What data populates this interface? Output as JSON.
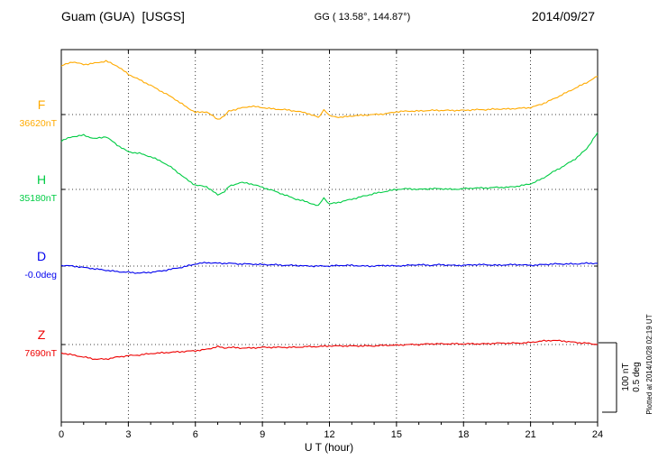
{
  "header": {
    "station": "Guam (GUA)  [USGS]",
    "coords": "GG ( 13.58°, 144.87°)",
    "date": "2014/09/27"
  },
  "axis": {
    "xlabel": "U T (hour)"
  },
  "scalebar": {
    "label_nt": "100 nT",
    "label_deg": "0.5 deg"
  },
  "footer_note": "Plotted at 2014/10/28 02:19 UT",
  "colors": {
    "F": "#ffaa00",
    "H": "#00cc44",
    "D": "#0000ee",
    "Z": "#ee0000",
    "grid": "#000000"
  },
  "chart_data": {
    "type": "line",
    "title": "Guam (GUA) [USGS] magnetogram 2014/09/27",
    "xlabel": "U T (hour)",
    "x_range": [
      0,
      24
    ],
    "x_ticks": [
      0,
      3,
      6,
      9,
      12,
      15,
      18,
      21,
      24
    ],
    "grid": "dotted",
    "scale": {
      "nT_per_div": 100,
      "deg_per_div": 0.5
    },
    "values_are": "offset from channel baseline (nT for F,H,Z; deg for D)",
    "series": [
      {
        "id": "F",
        "label": "F",
        "baseline_label": "36620nT",
        "baseline_value": 36620,
        "unit": "nT",
        "color": "#ffaa00",
        "points": [
          [
            0,
            70
          ],
          [
            0.5,
            76
          ],
          [
            1,
            72
          ],
          [
            1.5,
            74
          ],
          [
            2,
            77
          ],
          [
            2.5,
            70
          ],
          [
            3,
            58
          ],
          [
            3.5,
            50
          ],
          [
            4,
            42
          ],
          [
            4.5,
            33
          ],
          [
            5,
            24
          ],
          [
            5.5,
            13
          ],
          [
            6,
            3
          ],
          [
            6.5,
            4
          ],
          [
            7,
            -7
          ],
          [
            7.3,
            -2
          ],
          [
            7.5,
            5
          ],
          [
            8,
            9
          ],
          [
            8.5,
            12
          ],
          [
            9,
            10
          ],
          [
            9.5,
            8
          ],
          [
            10,
            7
          ],
          [
            10.5,
            5
          ],
          [
            11,
            2
          ],
          [
            11.5,
            -4
          ],
          [
            11.75,
            7
          ],
          [
            12,
            -2
          ],
          [
            12.5,
            -4
          ],
          [
            13,
            -2
          ],
          [
            13.5,
            -1
          ],
          [
            14,
            0
          ],
          [
            14.5,
            1
          ],
          [
            15,
            4
          ],
          [
            15.5,
            5
          ],
          [
            16,
            5
          ],
          [
            16.5,
            6
          ],
          [
            17,
            6
          ],
          [
            17.5,
            6
          ],
          [
            18,
            6
          ],
          [
            18.5,
            7
          ],
          [
            19,
            7
          ],
          [
            19.5,
            8
          ],
          [
            20,
            8
          ],
          [
            20.5,
            9
          ],
          [
            21,
            10
          ],
          [
            21.5,
            15
          ],
          [
            22,
            22
          ],
          [
            22.5,
            30
          ],
          [
            23,
            38
          ],
          [
            23.5,
            46
          ],
          [
            24,
            55
          ]
        ]
      },
      {
        "id": "H",
        "label": "H",
        "baseline_label": "35180nT",
        "baseline_value": 35180,
        "unit": "nT",
        "color": "#00cc44",
        "points": [
          [
            0,
            70
          ],
          [
            0.5,
            76
          ],
          [
            1,
            78
          ],
          [
            1.5,
            73
          ],
          [
            2,
            76
          ],
          [
            2.5,
            64
          ],
          [
            3,
            54
          ],
          [
            3.5,
            52
          ],
          [
            4,
            47
          ],
          [
            4.5,
            40
          ],
          [
            5,
            30
          ],
          [
            5.5,
            17
          ],
          [
            6,
            6
          ],
          [
            6.5,
            4
          ],
          [
            7,
            -8
          ],
          [
            7.3,
            -3
          ],
          [
            7.5,
            4
          ],
          [
            8,
            10
          ],
          [
            8.5,
            8
          ],
          [
            9,
            3
          ],
          [
            9.5,
            -2
          ],
          [
            10,
            -8
          ],
          [
            10.5,
            -14
          ],
          [
            11,
            -18
          ],
          [
            11.5,
            -24
          ],
          [
            11.75,
            -12
          ],
          [
            12,
            -21
          ],
          [
            12.5,
            -18
          ],
          [
            13,
            -14
          ],
          [
            13.5,
            -10
          ],
          [
            14,
            -6
          ],
          [
            14.5,
            -3
          ],
          [
            15,
            0
          ],
          [
            15.5,
            1
          ],
          [
            16,
            0
          ],
          [
            16.5,
            1
          ],
          [
            17,
            1
          ],
          [
            17.5,
            0
          ],
          [
            18,
            1
          ],
          [
            18.5,
            2
          ],
          [
            19,
            2
          ],
          [
            19.5,
            3
          ],
          [
            20,
            3
          ],
          [
            20.5,
            5
          ],
          [
            21,
            8
          ],
          [
            21.5,
            15
          ],
          [
            22,
            25
          ],
          [
            22.5,
            34
          ],
          [
            23,
            44
          ],
          [
            23.5,
            58
          ],
          [
            24,
            82
          ]
        ]
      },
      {
        "id": "D",
        "label": "D",
        "baseline_label": "-0.0deg",
        "baseline_value": -0.0,
        "unit": "deg",
        "color": "#0000ee",
        "points": [
          [
            0,
            0.005
          ],
          [
            0.5,
            0
          ],
          [
            1,
            -0.01
          ],
          [
            1.5,
            -0.02
          ],
          [
            2,
            -0.03
          ],
          [
            2.5,
            -0.04
          ],
          [
            3,
            -0.045
          ],
          [
            3.5,
            -0.05
          ],
          [
            4,
            -0.045
          ],
          [
            4.5,
            -0.035
          ],
          [
            5,
            -0.02
          ],
          [
            5.5,
            -0.005
          ],
          [
            6,
            0.015
          ],
          [
            6.5,
            0.025
          ],
          [
            7,
            0.02
          ],
          [
            7.5,
            0.02
          ],
          [
            8,
            0.015
          ],
          [
            8.5,
            0.015
          ],
          [
            9,
            0.01
          ],
          [
            9.5,
            0.01
          ],
          [
            10,
            0.005
          ],
          [
            10.5,
            0.005
          ],
          [
            11,
            0
          ],
          [
            11.5,
            0
          ],
          [
            12,
            0
          ],
          [
            12.5,
            0.005
          ],
          [
            13,
            0.005
          ],
          [
            13.5,
            0
          ],
          [
            14,
            0
          ],
          [
            14.5,
            0.005
          ],
          [
            15,
            0
          ],
          [
            15.5,
            0.005
          ],
          [
            16,
            0.01
          ],
          [
            16.5,
            0.005
          ],
          [
            17,
            0.01
          ],
          [
            17.5,
            0.005
          ],
          [
            18,
            0.005
          ],
          [
            18.5,
            0.01
          ],
          [
            19,
            0.01
          ],
          [
            19.5,
            0.005
          ],
          [
            20,
            0.01
          ],
          [
            20.5,
            0.01
          ],
          [
            21,
            0.005
          ],
          [
            21.5,
            0.01
          ],
          [
            22,
            0.015
          ],
          [
            22.5,
            0.015
          ],
          [
            23,
            0.015
          ],
          [
            23.5,
            0.02
          ],
          [
            24,
            0.02
          ]
        ]
      },
      {
        "id": "Z",
        "label": "Z",
        "baseline_label": "7690nT",
        "baseline_value": 7690,
        "unit": "nT",
        "color": "#ee0000",
        "points": [
          [
            0,
            -12
          ],
          [
            0.5,
            -15
          ],
          [
            1,
            -18
          ],
          [
            1.5,
            -21
          ],
          [
            2,
            -21
          ],
          [
            2.5,
            -18
          ],
          [
            3,
            -16
          ],
          [
            3.5,
            -15
          ],
          [
            4,
            -13
          ],
          [
            4.5,
            -12
          ],
          [
            5,
            -11
          ],
          [
            5.5,
            -10
          ],
          [
            6,
            -9
          ],
          [
            6.5,
            -7
          ],
          [
            7,
            -3
          ],
          [
            7.3,
            -5
          ],
          [
            7.5,
            -4
          ],
          [
            8,
            -5
          ],
          [
            8.5,
            -5
          ],
          [
            9,
            -4
          ],
          [
            9.5,
            -4
          ],
          [
            10,
            -4
          ],
          [
            10.5,
            -4
          ],
          [
            11,
            -3
          ],
          [
            11.5,
            -3
          ],
          [
            12,
            -2
          ],
          [
            12.5,
            -2
          ],
          [
            13,
            -2
          ],
          [
            13.5,
            -2
          ],
          [
            14,
            -2
          ],
          [
            14.5,
            -1
          ],
          [
            15,
            -1
          ],
          [
            15.5,
            0
          ],
          [
            16,
            0
          ],
          [
            16.5,
            1
          ],
          [
            17,
            1
          ],
          [
            17.5,
            1
          ],
          [
            18,
            1
          ],
          [
            18.5,
            1
          ],
          [
            19,
            1
          ],
          [
            19.5,
            2
          ],
          [
            20,
            2
          ],
          [
            20.5,
            2
          ],
          [
            21,
            3
          ],
          [
            21.5,
            5
          ],
          [
            22,
            6
          ],
          [
            22.5,
            5
          ],
          [
            23,
            3
          ],
          [
            23.5,
            2
          ],
          [
            24,
            0
          ]
        ]
      }
    ]
  }
}
